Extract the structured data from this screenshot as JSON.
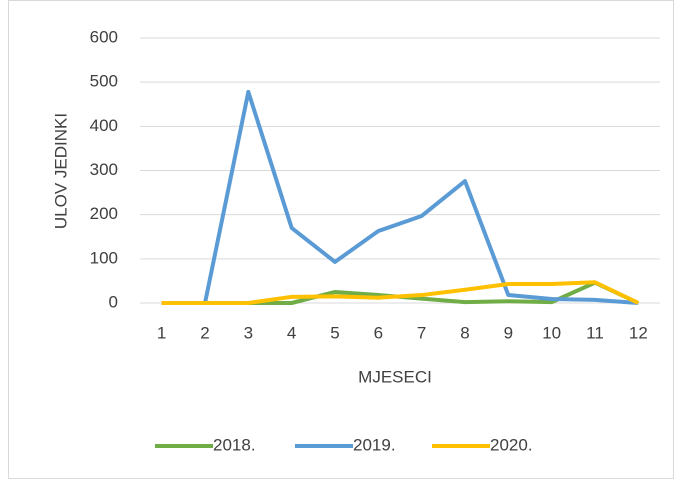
{
  "chart_data": {
    "type": "line",
    "categories": [
      "1",
      "2",
      "3",
      "4",
      "5",
      "6",
      "7",
      "8",
      "9",
      "10",
      "11",
      "12"
    ],
    "series": [
      {
        "name": "2018.",
        "color": "#70ad47",
        "values": [
          0,
          0,
          0,
          0,
          25,
          18,
          10,
          2,
          4,
          2,
          46,
          0
        ]
      },
      {
        "name": "2019.",
        "color": "#5b9bd5",
        "values": [
          0,
          0,
          478,
          170,
          93,
          163,
          197,
          276,
          18,
          9,
          7,
          0
        ]
      },
      {
        "name": "2020.",
        "color": "#ffc000",
        "values": [
          0,
          0,
          0,
          14,
          15,
          12,
          18,
          30,
          43,
          43,
          47,
          0
        ]
      }
    ],
    "xlabel": "MJESECI",
    "ylabel": "ULOV JEDINKI",
    "ylim": [
      0,
      600
    ],
    "yticks": [
      0,
      100,
      200,
      300,
      400,
      500,
      600
    ],
    "grid": true,
    "legend": "bottom"
  }
}
